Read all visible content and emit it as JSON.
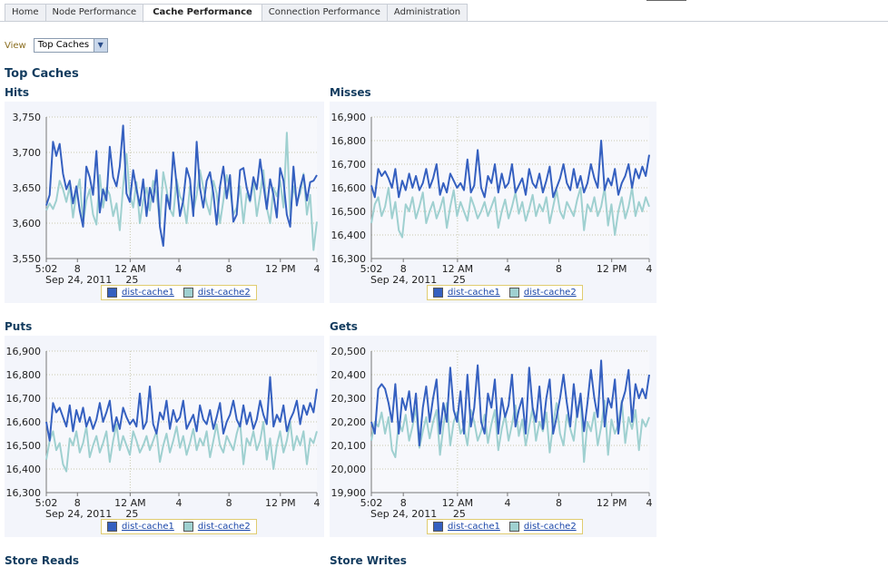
{
  "tabs": [
    {
      "label": "Home",
      "active": false
    },
    {
      "label": "Node Performance",
      "active": false
    },
    {
      "label": "Cache Performance",
      "active": true
    },
    {
      "label": "Connection Performance",
      "active": false
    },
    {
      "label": "Administration",
      "active": false
    }
  ],
  "view": {
    "label": "View",
    "selected": "Top Caches"
  },
  "section_title": "Top Caches",
  "below_titles": [
    "Store Reads",
    "Store Writes"
  ],
  "colors": {
    "series1": "#3560c0",
    "series2": "#9fd0d0",
    "plot_bg": "#f3f5fb",
    "grid": "#c8c8b0",
    "accent_title": "#123b5e"
  },
  "chart_data": [
    {
      "type": "line",
      "title": "Hits",
      "x_tick_labels": [
        "5:02",
        "8",
        "12 AM",
        "4",
        "8",
        "12 PM",
        "4"
      ],
      "x_sub_labels": [
        "Sep 24, 2011",
        "25"
      ],
      "y_ticks": [
        "3,750",
        "3,700",
        "3,650",
        "3,600",
        "3,550"
      ],
      "ylim": [
        3550,
        3750
      ],
      "legend": [
        "dist-cache1",
        "dist-cache2"
      ],
      "series": [
        {
          "name": "dist-cache1",
          "values": [
            3625,
            3640,
            3715,
            3695,
            3712,
            3670,
            3648,
            3660,
            3628,
            3652,
            3618,
            3595,
            3680,
            3665,
            3640,
            3702,
            3615,
            3648,
            3632,
            3708,
            3665,
            3652,
            3680,
            3738,
            3642,
            3630,
            3675,
            3648,
            3625,
            3662,
            3610,
            3650,
            3630,
            3675,
            3595,
            3568,
            3640,
            3620,
            3700,
            3655,
            3610,
            3632,
            3678,
            3662,
            3610,
            3715,
            3650,
            3622,
            3660,
            3672,
            3642,
            3598,
            3652,
            3680,
            3635,
            3668,
            3602,
            3612,
            3675,
            3678,
            3650,
            3632,
            3665,
            3648,
            3690,
            3655,
            3620,
            3662,
            3640,
            3608,
            3678,
            3660,
            3612,
            3595,
            3680,
            3625,
            3650,
            3668,
            3632,
            3658,
            3660,
            3668
          ]
        },
        {
          "name": "dist-cache2",
          "values": [
            3618,
            3628,
            3620,
            3632,
            3660,
            3648,
            3630,
            3652,
            3608,
            3642,
            3662,
            3600,
            3632,
            3648,
            3612,
            3598,
            3668,
            3622,
            3650,
            3640,
            3610,
            3628,
            3590,
            3652,
            3698,
            3640,
            3622,
            3658,
            3600,
            3632,
            3650,
            3618,
            3660,
            3642,
            3600,
            3672,
            3648,
            3620,
            3610,
            3662,
            3638,
            3630,
            3600,
            3652,
            3618,
            3640,
            3675,
            3650,
            3628,
            3612,
            3660,
            3642,
            3600,
            3632,
            3668,
            3648,
            3612,
            3622,
            3652,
            3600,
            3642,
            3630,
            3658,
            3610,
            3640,
            3675,
            3622,
            3600,
            3650,
            3638,
            3660,
            3622,
            3728,
            3610,
            3652,
            3630,
            3642,
            3670,
            3612,
            3640,
            3562,
            3602
          ]
        }
      ]
    },
    {
      "type": "line",
      "title": "Misses",
      "x_tick_labels": [
        "5:02",
        "8",
        "12 AM",
        "4",
        "8",
        "12 PM",
        "4"
      ],
      "x_sub_labels": [
        "Sep 24, 2011",
        "25"
      ],
      "y_ticks": [
        "16,900",
        "16,800",
        "16,700",
        "16,600",
        "16,500",
        "16,400",
        "16,300"
      ],
      "ylim": [
        16300,
        16900
      ],
      "legend": [
        "dist-cache1",
        "dist-cache2"
      ],
      "series": [
        {
          "name": "dist-cache1",
          "values": [
            16610,
            16560,
            16680,
            16650,
            16670,
            16640,
            16600,
            16680,
            16560,
            16630,
            16590,
            16660,
            16600,
            16650,
            16590,
            16620,
            16680,
            16600,
            16640,
            16700,
            16570,
            16620,
            16580,
            16660,
            16630,
            16600,
            16620,
            16590,
            16720,
            16580,
            16610,
            16760,
            16600,
            16560,
            16650,
            16620,
            16700,
            16580,
            16660,
            16600,
            16620,
            16700,
            16580,
            16610,
            16640,
            16570,
            16680,
            16620,
            16600,
            16660,
            16580,
            16630,
            16690,
            16560,
            16600,
            16640,
            16700,
            16620,
            16590,
            16680,
            16600,
            16650,
            16580,
            16620,
            16700,
            16640,
            16600,
            16800,
            16590,
            16640,
            16610,
            16680,
            16570,
            16620,
            16650,
            16700,
            16600,
            16680,
            16640,
            16690,
            16650,
            16740
          ]
        },
        {
          "name": "dist-cache2",
          "values": [
            16450,
            16530,
            16560,
            16480,
            16520,
            16600,
            16470,
            16540,
            16420,
            16390,
            16530,
            16500,
            16560,
            16470,
            16520,
            16580,
            16450,
            16500,
            16540,
            16470,
            16510,
            16560,
            16430,
            16520,
            16590,
            16480,
            16540,
            16500,
            16460,
            16560,
            16520,
            16470,
            16500,
            16540,
            16480,
            16520,
            16560,
            16430,
            16500,
            16550,
            16470,
            16520,
            16580,
            16490,
            16540,
            16460,
            16510,
            16570,
            16480,
            16530,
            16500,
            16560,
            16450,
            16520,
            16590,
            16500,
            16470,
            16540,
            16510,
            16480,
            16550,
            16600,
            16420,
            16530,
            16500,
            16560,
            16480,
            16520,
            16600,
            16440,
            16530,
            16400,
            16500,
            16560,
            16470,
            16520,
            16600,
            16480,
            16540,
            16500,
            16560,
            16520
          ]
        }
      ]
    },
    {
      "type": "line",
      "title": "Puts",
      "x_tick_labels": [
        "5:02",
        "8",
        "12 AM",
        "4",
        "8",
        "12 PM",
        "4"
      ],
      "x_sub_labels": [
        "Sep 24, 2011",
        "25"
      ],
      "y_ticks": [
        "16,900",
        "16,800",
        "16,700",
        "16,600",
        "16,500",
        "16,400",
        "16,300"
      ],
      "ylim": [
        16300,
        16900
      ],
      "legend": [
        "dist-cache1",
        "dist-cache2"
      ],
      "series": [
        {
          "name": "dist-cache1",
          "values": [
            16600,
            16520,
            16680,
            16640,
            16660,
            16620,
            16580,
            16670,
            16560,
            16650,
            16600,
            16660,
            16580,
            16620,
            16570,
            16610,
            16680,
            16600,
            16640,
            16690,
            16560,
            16620,
            16570,
            16660,
            16620,
            16590,
            16610,
            16580,
            16720,
            16570,
            16600,
            16750,
            16590,
            16550,
            16640,
            16610,
            16690,
            16570,
            16650,
            16600,
            16620,
            16690,
            16570,
            16600,
            16630,
            16560,
            16670,
            16610,
            16590,
            16650,
            16570,
            16620,
            16680,
            16550,
            16600,
            16630,
            16690,
            16610,
            16580,
            16670,
            16590,
            16640,
            16570,
            16610,
            16690,
            16630,
            16590,
            16790,
            16580,
            16630,
            16600,
            16670,
            16560,
            16610,
            16640,
            16690,
            16590,
            16670,
            16630,
            16680,
            16640,
            16740
          ]
        },
        {
          "name": "dist-cache2",
          "values": [
            16440,
            16520,
            16560,
            16480,
            16510,
            16420,
            16390,
            16530,
            16500,
            16560,
            16470,
            16510,
            16580,
            16450,
            16500,
            16540,
            16470,
            16510,
            16560,
            16430,
            16520,
            16590,
            16480,
            16540,
            16500,
            16460,
            16560,
            16520,
            16470,
            16500,
            16540,
            16480,
            16520,
            16560,
            16430,
            16500,
            16550,
            16470,
            16520,
            16580,
            16490,
            16540,
            16460,
            16510,
            16570,
            16480,
            16530,
            16500,
            16560,
            16450,
            16520,
            16590,
            16500,
            16470,
            16540,
            16510,
            16480,
            16550,
            16600,
            16420,
            16530,
            16500,
            16560,
            16480,
            16520,
            16600,
            16440,
            16530,
            16400,
            16500,
            16560,
            16470,
            16520,
            16600,
            16480,
            16540,
            16500,
            16560,
            16420,
            16530,
            16510,
            16560
          ]
        }
      ]
    },
    {
      "type": "line",
      "title": "Gets",
      "x_tick_labels": [
        "5:02",
        "8",
        "12 AM",
        "4",
        "8",
        "12 PM",
        "4"
      ],
      "x_sub_labels": [
        "Sep 24, 2011",
        "25"
      ],
      "y_ticks": [
        "20,500",
        "20,400",
        "20,300",
        "20,200",
        "20,100",
        "20,000",
        "19,900"
      ],
      "ylim": [
        19900,
        20500
      ],
      "legend": [
        "dist-cache1",
        "dist-cache2"
      ],
      "series": [
        {
          "name": "dist-cache1",
          "values": [
            20200,
            20150,
            20340,
            20360,
            20340,
            20280,
            20200,
            20360,
            20150,
            20300,
            20250,
            20330,
            20200,
            20320,
            20100,
            20260,
            20350,
            20200,
            20300,
            20380,
            20150,
            20280,
            20200,
            20430,
            20250,
            20200,
            20330,
            20150,
            20400,
            20180,
            20260,
            20440,
            20200,
            20150,
            20320,
            20260,
            20380,
            20150,
            20300,
            20220,
            20270,
            20400,
            20180,
            20250,
            20300,
            20150,
            20430,
            20260,
            20200,
            20350,
            20170,
            20300,
            20380,
            20150,
            20220,
            20300,
            20400,
            20280,
            20180,
            20360,
            20220,
            20320,
            20160,
            20280,
            20420,
            20300,
            20220,
            20460,
            20180,
            20300,
            20260,
            20380,
            20150,
            20280,
            20330,
            20420,
            20200,
            20360,
            20300,
            20340,
            20300,
            20400
          ]
        },
        {
          "name": "dist-cache2",
          "values": [
            20120,
            20200,
            20180,
            20240,
            20150,
            20220,
            20080,
            20050,
            20200,
            20160,
            20230,
            20120,
            20180,
            20260,
            20090,
            20160,
            20220,
            20130,
            20200,
            20250,
            20060,
            20180,
            20280,
            20100,
            20200,
            20240,
            20150,
            20180,
            20100,
            20250,
            20200,
            20120,
            20160,
            20230,
            20110,
            20190,
            20250,
            20080,
            20170,
            20230,
            20120,
            20190,
            20270,
            20140,
            20210,
            20100,
            20180,
            20260,
            20120,
            20200,
            20160,
            20240,
            20070,
            20190,
            20280,
            20150,
            20100,
            20230,
            20170,
            20120,
            20250,
            20300,
            20030,
            20200,
            20160,
            20240,
            20100,
            20180,
            20290,
            20060,
            20210,
            20150,
            20190,
            20290,
            20110,
            20220,
            20170,
            20250,
            20080,
            20210,
            20180,
            20220
          ]
        }
      ]
    }
  ]
}
